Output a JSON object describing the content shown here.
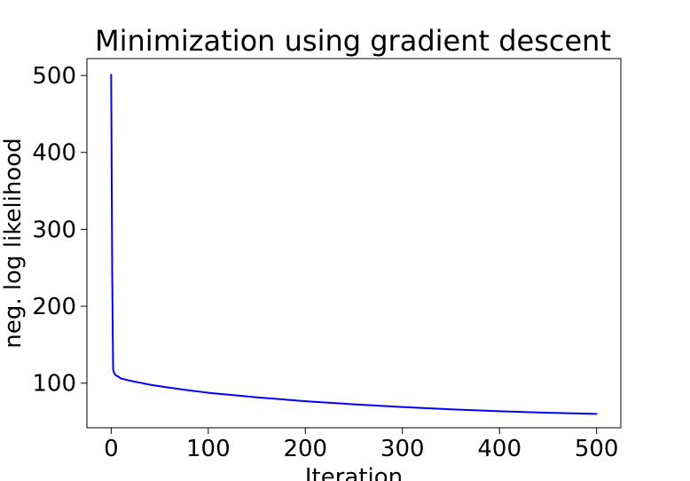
{
  "chart_data": {
    "type": "line",
    "title": "Minimization using gradient descent",
    "xlabel": "Iteration",
    "ylabel": "neg. log likelihood",
    "xlim": [
      -25,
      525
    ],
    "ylim": [
      42,
      522
    ],
    "xticks": [
      0,
      100,
      200,
      300,
      400,
      500
    ],
    "yticks": [
      100,
      200,
      300,
      400,
      500
    ],
    "grid": false,
    "series": [
      {
        "color": "#0000ff",
        "x": [
          0,
          1,
          2,
          3,
          5,
          8,
          10,
          15,
          20,
          30,
          40,
          50,
          75,
          100,
          125,
          150,
          175,
          200,
          250,
          300,
          350,
          400,
          450,
          500
        ],
        "y": [
          501,
          250,
          118,
          113,
          110,
          108,
          106,
          104.5,
          103,
          100.5,
          98,
          96,
          91.5,
          87.5,
          84.5,
          81.5,
          79,
          76.5,
          72.5,
          69,
          66,
          63.5,
          61.5,
          60
        ]
      }
    ]
  }
}
